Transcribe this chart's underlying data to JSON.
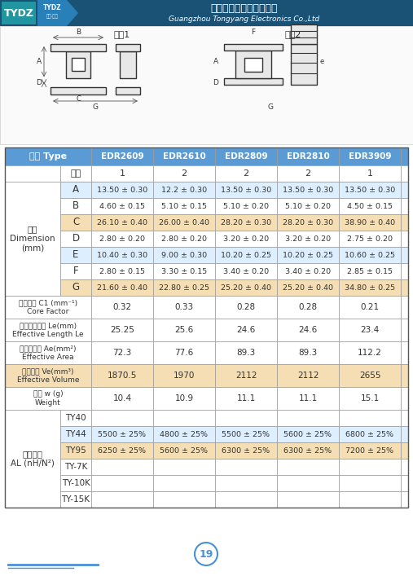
{
  "company_cn": "广州市通洋电子有限公司",
  "company_en": "Guangzhou Tongyang Electronics Co.,Ltd",
  "brand": "TYDZ",
  "header_row": [
    "型号 Type",
    "EDR2609",
    "EDR2610",
    "EDR2809",
    "EDR2810",
    "EDR3909"
  ],
  "subheader_row": [
    "形式",
    "1",
    "2",
    "2",
    "2",
    "1"
  ],
  "dimension_label": "尺寸\nDimension\n(mm)",
  "dim_rows": [
    [
      "A",
      "13.50 ± 0.30",
      "12.2 ± 0.30",
      "13.50 ± 0.30",
      "13.50 ± 0.30",
      "13.50 ± 0.30"
    ],
    [
      "B",
      "4.60 ± 0.15",
      "5.10 ± 0.15",
      "5.10 ± 0.20",
      "5.10 ± 0.20",
      "4.50 ± 0.15"
    ],
    [
      "C",
      "26.10 ± 0.40",
      "26.00 ± 0.40",
      "28.20 ± 0.30",
      "28.20 ± 0.30",
      "38.90 ± 0.40"
    ],
    [
      "D",
      "2.80 ± 0.20",
      "2.80 ± 0.20",
      "3.20 ± 0.20",
      "3.20 ± 0.20",
      "2.75 ± 0.20"
    ],
    [
      "E",
      "10.40 ± 0.30",
      "9.00 ± 0.30",
      "10.20 ± 0.25",
      "10.20 ± 0.25",
      "10.60 ± 0.25"
    ],
    [
      "F",
      "2.80 ± 0.15",
      "3.30 ± 0.15",
      "3.40 ± 0.20",
      "3.40 ± 0.20",
      "2.85 ± 0.15"
    ],
    [
      "G",
      "21.60 ± 0.40",
      "22.80 ± 0.25",
      "25.20 ± 0.40",
      "25.20 ± 0.40",
      "34.80 ± 0.25"
    ]
  ],
  "dim_row_colors": [
    "#ddeeff",
    "#ffffff",
    "#f5deb3",
    "#ffffff",
    "#ddeeff",
    "#ffffff",
    "#f5deb3"
  ],
  "property_rows": [
    [
      "磁芯常数 C1 (mm⁻¹)\nCore Factor",
      "0.32",
      "0.33",
      "0.28",
      "0.28",
      "0.21"
    ],
    [
      "有效磁路长度 Le(mm)\nEffective Length Le",
      "25.25",
      "25.6",
      "24.6",
      "24.6",
      "23.4"
    ],
    [
      "有效截面积 Ae(mm²)\nEffective Area",
      "72.3",
      "77.6",
      "89.3",
      "89.3",
      "112.2"
    ],
    [
      "有效体积 Ve(mm³)\nEffective Volume",
      "1870.5",
      "1970",
      "2112",
      "2112",
      "2655"
    ],
    [
      "重量 w (g)\nWeight",
      "10.4",
      "10.9",
      "11.1",
      "11.1",
      "15.1"
    ]
  ],
  "prop_row_colors": [
    "#ffffff",
    "#ffffff",
    "#ffffff",
    "#f5deb3",
    "#ffffff"
  ],
  "al_label": "电感系数\nAL (nH/N²)",
  "al_rows": [
    [
      "TY40",
      "",
      "",
      "",
      "",
      ""
    ],
    [
      "TY44",
      "5500 ± 25%",
      "4800 ± 25%",
      "5500 ± 25%",
      "5600 ± 25%",
      "6800 ± 25%"
    ],
    [
      "TY95",
      "6250 ± 25%",
      "5600 ± 25%",
      "6300 ± 25%",
      "6300 ± 25%",
      "7200 ± 25%"
    ],
    [
      "TY-7K",
      "",
      "",
      "",
      "",
      ""
    ],
    [
      "TY-10K",
      "",
      "",
      "",
      "",
      ""
    ],
    [
      "TY-15K",
      "",
      "",
      "",
      "",
      ""
    ]
  ],
  "al_row_colors": [
    "#ffffff",
    "#ddeeff",
    "#f5deb3",
    "#ffffff",
    "#ffffff",
    "#ffffff"
  ],
  "page_number": "19"
}
